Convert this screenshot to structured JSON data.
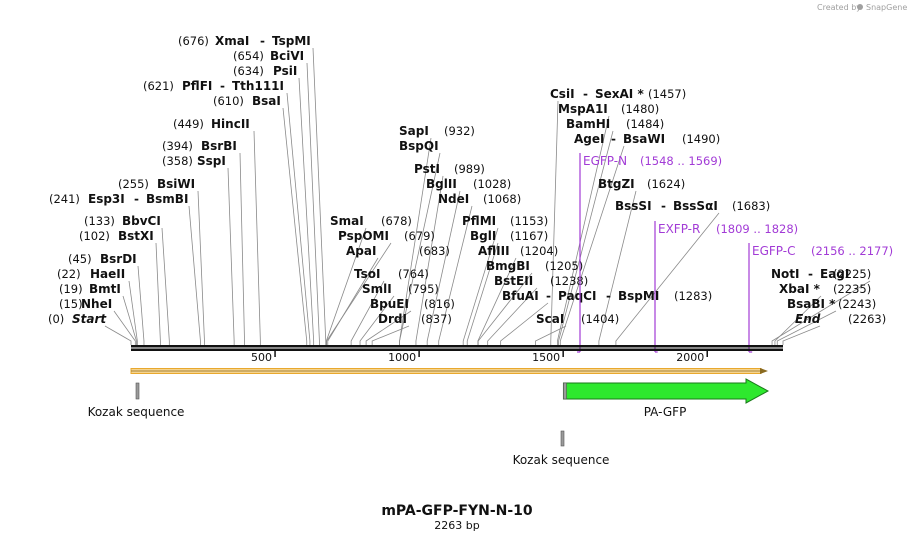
{
  "credit": {
    "text": "Created by",
    "brand": "SnapGene"
  },
  "sequence": {
    "name": "mPA-GFP-FYN-N-10",
    "length_label": "2263 bp",
    "length": 2263
  },
  "ruler": {
    "ticks": [
      500,
      1000,
      1500,
      2000
    ]
  },
  "sites": [
    {
      "name": "XmaI",
      "partner": "TspMI",
      "pos": 676,
      "lead": 676
    },
    {
      "name": "BciVI",
      "pos": 654,
      "lead": 654
    },
    {
      "name": "PsiI",
      "pos": 634,
      "lead": 634
    },
    {
      "name": "PflFI",
      "partner": "Tth111I",
      "pos": 621,
      "lead": 621
    },
    {
      "name": "BsaI",
      "pos": 610,
      "lead": 610
    },
    {
      "name": "HincII",
      "pos": 449,
      "lead": 449
    },
    {
      "name": "BsrBI",
      "pos": 394,
      "lead": 394
    },
    {
      "name": "SspI",
      "pos": 358,
      "lead": 358
    },
    {
      "name": "BsiWI",
      "pos": 255,
      "lead": 255
    },
    {
      "name": "Esp3I",
      "partner": "BsmBI",
      "pos": 241,
      "lead": 241
    },
    {
      "name": "BbvCI",
      "pos": 133,
      "lead": 133
    },
    {
      "name": "BstXI",
      "pos": 102,
      "lead": 102
    },
    {
      "name": "BsrDI",
      "pos": 45,
      "lead": 45
    },
    {
      "name": "HaeII",
      "pos": 22,
      "lead": 22
    },
    {
      "name": "BmtI",
      "pos": 19,
      "lead": 19
    },
    {
      "name": "NheI",
      "pos": 15,
      "lead": 15
    },
    {
      "name": "Start",
      "pos": 0,
      "lead": 0,
      "italic": true
    },
    {
      "name": "SapI",
      "pos": 932,
      "lead": 932
    },
    {
      "name": "BspQI",
      "lead": 932
    },
    {
      "name": "PstI",
      "pos": 989,
      "lead": 989
    },
    {
      "name": "BglII",
      "pos": 1028,
      "lead": 1028
    },
    {
      "name": "NdeI",
      "pos": 1068,
      "lead": 1068
    },
    {
      "name": "SmaI",
      "pos": 678,
      "lead": 678
    },
    {
      "name": "PspOMI",
      "pos": 679,
      "lead": 679
    },
    {
      "name": "ApaI",
      "pos": 683,
      "lead": 683
    },
    {
      "name": "TsoI",
      "pos": 764,
      "lead": 764
    },
    {
      "name": "SmlI",
      "pos": 795,
      "lead": 795
    },
    {
      "name": "BpuEI",
      "pos": 816,
      "lead": 816
    },
    {
      "name": "DrdI",
      "pos": 837,
      "lead": 837
    },
    {
      "name": "PflMI",
      "pos": 1153,
      "lead": 1153
    },
    {
      "name": "BglI",
      "pos": 1167,
      "lead": 1167
    },
    {
      "name": "AflIII",
      "pos": 1204,
      "lead": 1204
    },
    {
      "name": "BmgBI",
      "pos": 1205,
      "lead": 1205
    },
    {
      "name": "BstEII",
      "pos": 1238,
      "lead": 1238
    },
    {
      "name": "BfuAI",
      "partner": "PaqCI",
      "partner2": "BspMI",
      "pos": 1283,
      "lead": 1283
    },
    {
      "name": "ScaI",
      "pos": 1404,
      "lead": 1404
    },
    {
      "name": "CsiI",
      "partner": "SexAI *",
      "pos": 1457,
      "lead": 1457
    },
    {
      "name": "MspA1I",
      "pos": 1480,
      "lead": 1480
    },
    {
      "name": "BamHI",
      "pos": 1484,
      "lead": 1484
    },
    {
      "name": "AgeI",
      "partner": "BsaWI",
      "pos": 1490,
      "lead": 1490
    },
    {
      "name": "BtgZI",
      "pos": 1624,
      "lead": 1624
    },
    {
      "name": "BssSI",
      "partner": "BssSαI",
      "pos": 1683,
      "lead": 1683
    },
    {
      "name": "NotI",
      "partner": "EagI",
      "pos": 2225,
      "lead": 2225
    },
    {
      "name": "XbaI *",
      "pos": 2235,
      "lead": 2235
    },
    {
      "name": "BsaBI *",
      "pos": 2243,
      "lead": 2243
    },
    {
      "name": "End",
      "pos": 2263,
      "lead": 2263,
      "italic": true
    }
  ],
  "primers": [
    {
      "name": "EGFP-N",
      "range": "(1548 .. 1569)",
      "start": 1548,
      "end": 1569,
      "dir": "forward"
    },
    {
      "name": "EXFP-R",
      "range": "(1809 .. 1828)",
      "start": 1809,
      "end": 1828,
      "dir": "reverse"
    },
    {
      "name": "EGFP-C",
      "range": "(2156 .. 2177)",
      "start": 2156,
      "end": 2177,
      "dir": "forward"
    }
  ],
  "features": [
    {
      "name": "Kozak sequence",
      "start": 1,
      "end": 10,
      "color": "#9a9a9a",
      "type": "small"
    },
    {
      "name": "PA-GFP",
      "start": 1501,
      "end": 2263,
      "color": "#2ee82e",
      "type": "arrow"
    },
    {
      "name": "Kozak sequence",
      "start": 1495,
      "end": 1506,
      "color": "#9a9a9a",
      "type": "small-lower"
    }
  ],
  "colors": {
    "backbone": "#111111",
    "orf": "#e8a82e",
    "gfp": "#2ee82e",
    "primer": "#a23bd6"
  }
}
